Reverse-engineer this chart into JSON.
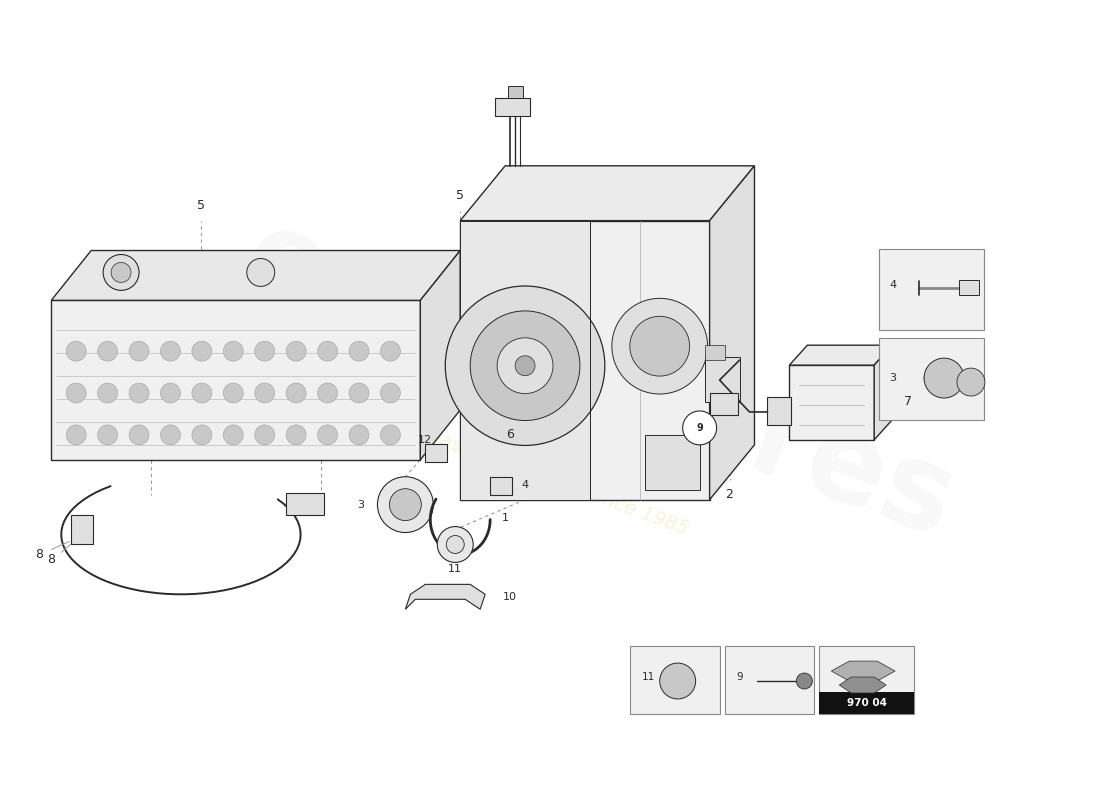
{
  "bg_color": "#ffffff",
  "watermark_text": "eurospares",
  "watermark_subtext": "a passion for parts since 1985",
  "part_number_code": "970 04",
  "line_color": "#2a2a2a",
  "dash_color": "#999999",
  "fill_light": "#f0f0f0",
  "fill_mid": "#e0e0e0",
  "fill_dark": "#c8c8c8"
}
